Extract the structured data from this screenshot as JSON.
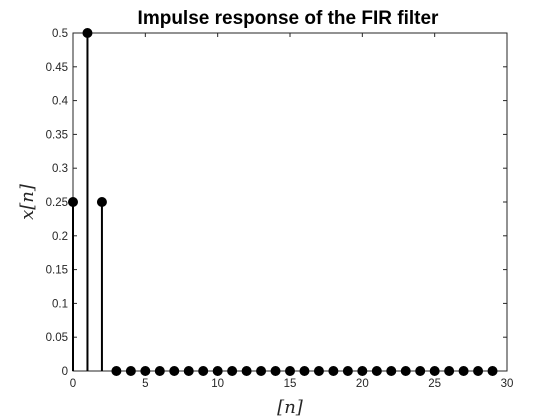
{
  "chart_data": {
    "type": "stem",
    "title": "Impulse response of the FIR filter",
    "xlabel": "[n]",
    "ylabel": "x[n]",
    "xlim": [
      0,
      30
    ],
    "ylim": [
      0,
      0.5
    ],
    "xticks": [
      "0",
      "5",
      "10",
      "15",
      "20",
      "25",
      "30"
    ],
    "yticks": [
      "0",
      "0.05",
      "0.1",
      "0.15",
      "0.2",
      "0.25",
      "0.3",
      "0.35",
      "0.4",
      "0.45",
      "0.5"
    ],
    "grid": false,
    "series": [
      {
        "x": [
          0,
          1,
          2,
          3,
          4,
          5,
          6,
          7,
          8,
          9,
          10,
          11,
          12,
          13,
          14,
          15,
          16,
          17,
          18,
          19,
          20,
          21,
          22,
          23,
          24,
          25,
          26,
          27,
          28,
          29
        ],
        "values": [
          0.25,
          0.5,
          0.25,
          0,
          0,
          0,
          0,
          0,
          0,
          0,
          0,
          0,
          0,
          0,
          0,
          0,
          0,
          0,
          0,
          0,
          0,
          0,
          0,
          0,
          0,
          0,
          0,
          0,
          0,
          0
        ]
      }
    ],
    "colors": {
      "stem": "#000000",
      "axes": "#262626"
    }
  }
}
